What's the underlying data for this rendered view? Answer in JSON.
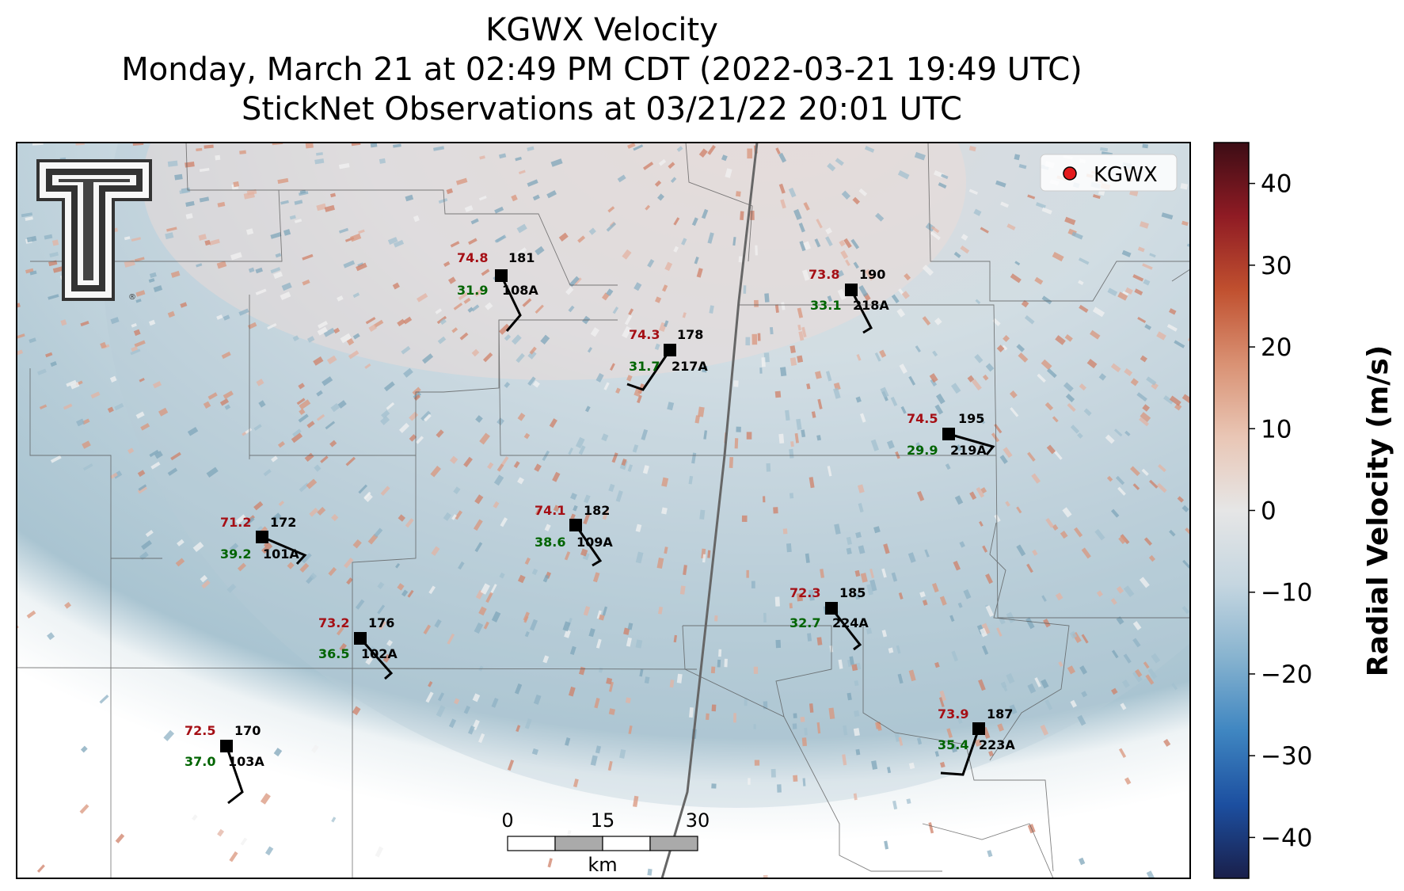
{
  "title": {
    "line1": "KGWX Velocity",
    "line2": "Monday, March 21 at 02:49 PM CDT (2022-03-21 19:49 UTC)",
    "line3": "StickNet Observations at 03/21/22 20:01 UTC"
  },
  "legend": {
    "label": "KGWX",
    "marker_color": "#e31a1c"
  },
  "logo": {
    "name": "double-t-logo",
    "mark": "®"
  },
  "colorbar": {
    "label": "Radial Velocity (m/s)",
    "min": -45,
    "max": 45,
    "ticks": [
      "40",
      "30",
      "20",
      "10",
      "0",
      "−10",
      "−20",
      "−30",
      "−40"
    ],
    "tick_values": [
      40,
      30,
      20,
      10,
      0,
      -10,
      -20,
      -30,
      -40
    ],
    "colors": [
      "#1a1f4a",
      "#1c4fa0",
      "#3f86c1",
      "#87b3cf",
      "#c5d6e0",
      "#e6e6e6",
      "#e9c6b5",
      "#d99173",
      "#c0502f",
      "#8f1b24",
      "#3d0d15"
    ]
  },
  "scalebar": {
    "labels": [
      "0",
      "15",
      "30"
    ],
    "unit": "km"
  },
  "stations": [
    {
      "id": "108A",
      "temp": "74.8",
      "dew": "31.9",
      "dir": "181"
    },
    {
      "id": "217A",
      "temp": "74.3",
      "dew": "31.7",
      "dir": "178"
    },
    {
      "id": "218A",
      "temp": "73.8",
      "dew": "33.1",
      "dir": "190"
    },
    {
      "id": "219A",
      "temp": "74.5",
      "dew": "29.9",
      "dir": "195"
    },
    {
      "id": "101A",
      "temp": "71.2",
      "dew": "39.2",
      "dir": "172"
    },
    {
      "id": "109A",
      "temp": "74.1",
      "dew": "38.6",
      "dir": "182"
    },
    {
      "id": "224A",
      "temp": "72.3",
      "dew": "32.7",
      "dir": "185"
    },
    {
      "id": "102A",
      "temp": "73.2",
      "dew": "36.5",
      "dir": "176"
    },
    {
      "id": "103A",
      "temp": "72.5",
      "dew": "37.0",
      "dir": "170"
    },
    {
      "id": "223A",
      "temp": "73.9",
      "dew": "35.4",
      "dir": "187"
    }
  ]
}
